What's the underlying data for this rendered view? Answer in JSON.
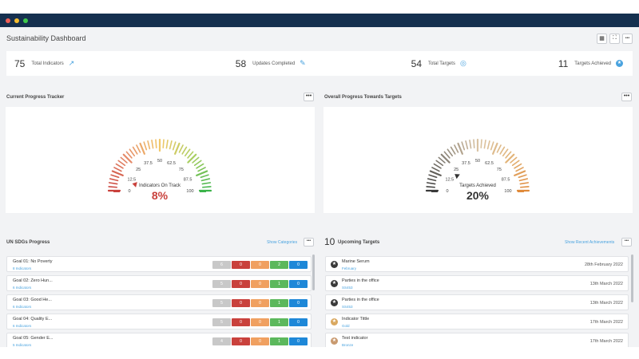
{
  "header": {
    "title": "Sustainability Dashboard",
    "grid_icon": "▦",
    "expand_icon": "⛶",
    "more_icon": "•••"
  },
  "stats": [
    {
      "value": "75",
      "label": "Total Indicators",
      "icon": "↗"
    },
    {
      "value": "58",
      "label": "Updates Completed",
      "icon": "✎"
    },
    {
      "value": "54",
      "label": "Total Targets",
      "icon": "◎"
    },
    {
      "value": "11",
      "label": "Targets Achieved",
      "icon": "★"
    }
  ],
  "tracker": {
    "title": "Current Progress Tracker",
    "ticks": [
      "0",
      "12.5",
      "25",
      "37.5",
      "50",
      "62.5",
      "75",
      "87.5",
      "100"
    ],
    "caption": "Indicators On Track",
    "value": "8%",
    "fraction": 0.08
  },
  "overall": {
    "title": "Overall Progress Towards Targets",
    "ticks": [
      "0",
      "12.5",
      "25",
      "37.5",
      "50",
      "62.5",
      "75",
      "87.5",
      "100"
    ],
    "caption": "Targets Achieved",
    "value": "20%",
    "fraction": 0.2
  },
  "sdgs": {
    "title": "UN SDGs Progress",
    "link": "Show Categories",
    "more": "•••",
    "rows": [
      {
        "name": "Goal 01: No Poverty",
        "sub": "8 Indicators",
        "cells": [
          "6",
          "0",
          "0",
          "2",
          "0"
        ]
      },
      {
        "name": "Goal 02: Zero Hun...",
        "sub": "6 Indicators",
        "cells": [
          "5",
          "0",
          "0",
          "1",
          "0"
        ]
      },
      {
        "name": "Goal 03: Good He...",
        "sub": "6 Indicators",
        "cells": [
          "5",
          "0",
          "0",
          "1",
          "0"
        ]
      },
      {
        "name": "Goal 04: Quality E...",
        "sub": "6 Indicators",
        "cells": [
          "5",
          "0",
          "0",
          "1",
          "0"
        ]
      },
      {
        "name": "Goal 05: Gender E...",
        "sub": "5 Indicators",
        "cells": [
          "4",
          "0",
          "0",
          "1",
          "0"
        ]
      }
    ],
    "cell_colors": [
      "#c8c8c8",
      "#c9413c",
      "#f0a060",
      "#5cb85c",
      "#1e88d8"
    ]
  },
  "targets": {
    "count": "10",
    "title": "Upcoming Targets",
    "link": "Show Recent Achievements",
    "more": "•••",
    "rows": [
      {
        "name": "Marine Serum",
        "sub": "February",
        "date": "28th February 2022",
        "icon": "★",
        "color": "#3a3a3a"
      },
      {
        "name": "Parties in the office",
        "sub": "SS453",
        "date": "13th March 2022",
        "icon": "★",
        "color": "#3a3a3a"
      },
      {
        "name": "Parties in the office",
        "sub": "SS453",
        "date": "13th March 2022",
        "icon": "★",
        "color": "#3a3a3a"
      },
      {
        "name": "Indicator Tittle",
        "sub": "Gold",
        "date": "17th March 2022",
        "icon": "★",
        "color": "#d9a860"
      },
      {
        "name": "Test indicator",
        "sub": "Bronze",
        "date": "17th March 2022",
        "icon": "★",
        "color": "#c99a70"
      }
    ]
  }
}
